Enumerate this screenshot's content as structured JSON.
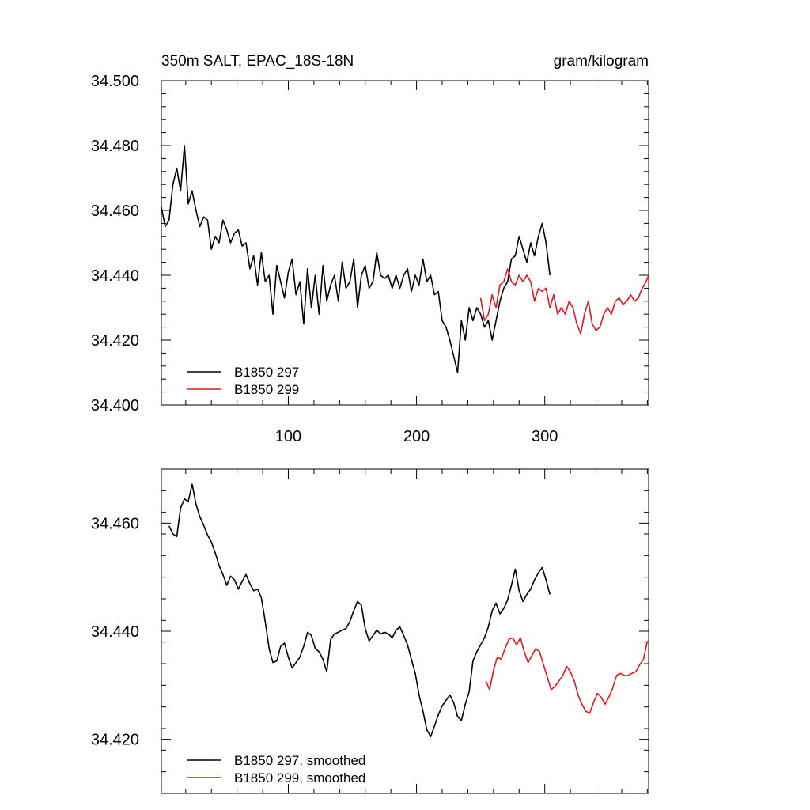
{
  "chart_data": [
    {
      "type": "line",
      "title": "350m SALT, EPAC_18S-18N",
      "units": "gram/kilogram",
      "xlabel": "",
      "ylabel": "",
      "xlim": [
        1,
        381
      ],
      "ylim": [
        34.4,
        34.5
      ],
      "xticks": [
        100,
        200,
        300
      ],
      "xticklabels": [
        "100",
        "200",
        "300"
      ],
      "yticks": [
        34.4,
        34.42,
        34.44,
        34.46,
        34.48,
        34.5
      ],
      "yticklabels": [
        "34.400",
        "34.420",
        "34.440",
        "34.460",
        "34.480",
        "34.500"
      ],
      "legend": [
        "B1850 297",
        "B1850 299"
      ],
      "legend_position": "bottom-left",
      "series": [
        {
          "name": "B1850 297",
          "color": "#000000",
          "x": [
            1,
            4,
            7,
            10,
            13,
            16,
            19,
            22,
            25,
            28,
            31,
            34,
            37,
            40,
            43,
            46,
            49,
            52,
            55,
            58,
            61,
            64,
            67,
            70,
            73,
            76,
            79,
            82,
            85,
            88,
            91,
            94,
            97,
            100,
            103,
            106,
            109,
            112,
            115,
            118,
            121,
            124,
            127,
            130,
            133,
            136,
            139,
            142,
            145,
            148,
            151,
            154,
            157,
            160,
            163,
            166,
            169,
            172,
            175,
            178,
            181,
            184,
            187,
            190,
            193,
            196,
            199,
            202,
            205,
            208,
            211,
            214,
            217,
            220,
            223,
            226,
            229,
            232,
            235,
            238,
            241,
            244,
            247,
            250,
            253,
            256,
            259,
            262,
            265,
            268,
            271,
            274,
            277,
            280,
            283,
            286,
            289,
            292,
            295,
            298,
            301,
            304
          ],
          "values": [
            34.461,
            34.455,
            34.457,
            34.468,
            34.473,
            34.466,
            34.48,
            34.462,
            34.466,
            34.46,
            34.455,
            34.458,
            34.457,
            34.448,
            34.452,
            34.45,
            34.457,
            34.454,
            34.45,
            34.453,
            34.454,
            34.449,
            34.45,
            34.442,
            34.446,
            34.437,
            34.447,
            34.438,
            34.44,
            34.428,
            34.443,
            34.438,
            34.433,
            34.441,
            34.445,
            34.434,
            34.438,
            34.425,
            34.442,
            34.43,
            34.44,
            34.428,
            34.443,
            34.432,
            34.437,
            34.44,
            34.432,
            34.444,
            34.436,
            34.438,
            34.445,
            34.43,
            34.44,
            34.443,
            34.436,
            34.438,
            34.447,
            34.44,
            34.439,
            34.44,
            34.436,
            34.44,
            34.436,
            34.44,
            34.442,
            34.435,
            34.44,
            34.437,
            34.445,
            34.438,
            34.44,
            34.434,
            34.435,
            34.426,
            34.424,
            34.42,
            34.415,
            34.41,
            34.426,
            34.42,
            34.43,
            34.426,
            34.43,
            34.428,
            34.424,
            34.426,
            34.42,
            34.426,
            34.432,
            34.436,
            34.438,
            34.445,
            34.446,
            34.452,
            34.448,
            34.444,
            34.45,
            34.446,
            34.452,
            34.456,
            34.45,
            34.44
          ]
        },
        {
          "name": "B1850 299",
          "color": "#e8141c",
          "x": [
            250,
            253,
            256,
            259,
            262,
            265,
            268,
            271,
            274,
            277,
            280,
            283,
            286,
            289,
            292,
            295,
            298,
            301,
            304,
            307,
            310,
            313,
            316,
            319,
            322,
            325,
            328,
            331,
            334,
            337,
            340,
            343,
            346,
            349,
            352,
            355,
            358,
            361,
            364,
            367,
            370,
            373,
            376,
            379,
            381
          ],
          "values": [
            34.433,
            34.426,
            34.428,
            34.434,
            34.43,
            34.437,
            34.438,
            34.442,
            34.438,
            34.437,
            34.44,
            34.438,
            34.44,
            34.438,
            34.432,
            34.436,
            34.435,
            34.436,
            34.43,
            34.434,
            34.428,
            34.43,
            34.428,
            34.432,
            34.43,
            34.425,
            34.422,
            34.428,
            34.432,
            34.425,
            34.423,
            34.424,
            34.428,
            34.43,
            34.428,
            34.432,
            34.433,
            34.431,
            34.432,
            34.434,
            34.432,
            34.433,
            34.436,
            34.438,
            34.44
          ]
        }
      ]
    },
    {
      "type": "line",
      "title": "",
      "xlabel": "",
      "ylabel": "",
      "xlim": [
        1,
        381
      ],
      "ylim": [
        34.41,
        34.47
      ],
      "yticks": [
        34.42,
        34.44,
        34.46
      ],
      "yticklabels": [
        "34.420",
        "34.440",
        "34.460"
      ],
      "legend": [
        "B1850 297, smoothed",
        "B1850 299, smoothed"
      ],
      "legend_position": "bottom-left",
      "series": [
        {
          "name": "B1850 297, smoothed",
          "color": "#000000",
          "x": [
            7,
            10,
            13,
            16,
            19,
            22,
            25,
            28,
            31,
            34,
            37,
            40,
            43,
            46,
            49,
            52,
            55,
            58,
            61,
            64,
            67,
            70,
            73,
            76,
            79,
            82,
            85,
            88,
            91,
            94,
            97,
            100,
            103,
            106,
            109,
            112,
            115,
            118,
            121,
            124,
            127,
            130,
            133,
            136,
            139,
            142,
            145,
            148,
            151,
            154,
            157,
            160,
            163,
            166,
            169,
            172,
            175,
            178,
            181,
            184,
            187,
            190,
            193,
            196,
            199,
            202,
            205,
            208,
            211,
            214,
            217,
            220,
            223,
            226,
            229,
            232,
            235,
            238,
            241,
            244,
            247,
            250,
            253,
            256,
            259,
            262,
            265,
            268,
            271,
            274,
            277,
            280,
            283,
            286,
            289,
            292,
            295,
            298,
            301,
            304
          ],
          "values": [
            34.4595,
            34.458,
            34.4575,
            34.4628,
            34.4645,
            34.464,
            34.4672,
            34.4635,
            34.4612,
            34.4596,
            34.4578,
            34.4565,
            34.4545,
            34.4522,
            34.4505,
            34.4485,
            34.4502,
            34.4495,
            34.4478,
            34.4492,
            34.4505,
            34.4488,
            34.4475,
            34.4478,
            34.4462,
            34.4418,
            34.4368,
            34.4342,
            34.4345,
            34.4372,
            34.4378,
            34.4352,
            34.4332,
            34.4342,
            34.4352,
            34.4372,
            34.4398,
            34.4392,
            34.4368,
            34.4362,
            34.4348,
            34.4325,
            34.4385,
            34.4395,
            34.4398,
            34.4402,
            34.4405,
            34.4418,
            34.4438,
            34.4455,
            34.4448,
            34.4405,
            34.4382,
            34.4392,
            34.4402,
            34.4395,
            34.4398,
            34.4395,
            34.4388,
            34.4402,
            34.4408,
            34.4392,
            34.4375,
            34.4348,
            34.4322,
            34.4282,
            34.4252,
            34.4218,
            34.4205,
            34.4225,
            34.4245,
            34.4262,
            34.4272,
            34.4282,
            34.4268,
            34.4242,
            34.4235,
            34.4265,
            34.4288,
            34.4345,
            34.4362,
            34.4375,
            34.4388,
            34.4408,
            34.4438,
            34.4452,
            34.4432,
            34.4442,
            34.4458,
            34.4485,
            34.4515,
            34.4475,
            34.4455,
            34.4468,
            34.4478,
            34.4495,
            34.4508,
            34.4518,
            34.4495,
            34.4468
          ]
        },
        {
          "name": "B1850 299, smoothed",
          "color": "#e8141c",
          "x": [
            254,
            257,
            260,
            263,
            266,
            269,
            272,
            275,
            278,
            281,
            284,
            287,
            290,
            293,
            296,
            299,
            302,
            305,
            308,
            311,
            314,
            317,
            320,
            323,
            326,
            329,
            332,
            335,
            338,
            341,
            344,
            347,
            350,
            353,
            356,
            359,
            362,
            365,
            368,
            371,
            374,
            377,
            380
          ],
          "values": [
            34.4308,
            34.4292,
            34.4328,
            34.4352,
            34.4348,
            34.4368,
            34.4385,
            34.4388,
            34.4375,
            34.4388,
            34.4362,
            34.4342,
            34.4355,
            34.4368,
            34.4362,
            34.4338,
            34.4315,
            34.4292,
            34.4298,
            34.4308,
            34.4318,
            34.4335,
            34.4325,
            34.4308,
            34.4282,
            34.4265,
            34.4252,
            34.4248,
            34.4268,
            34.4285,
            34.4278,
            34.4265,
            34.4278,
            34.4295,
            34.4318,
            34.4322,
            34.4318,
            34.4318,
            34.4322,
            34.4325,
            34.4338,
            34.4348,
            34.4382
          ]
        }
      ]
    }
  ]
}
